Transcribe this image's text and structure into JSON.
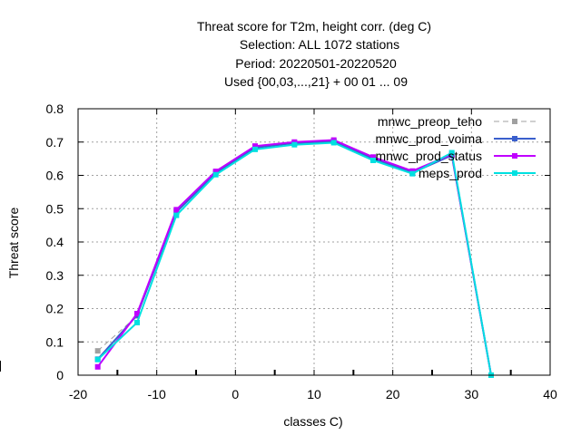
{
  "chart_data": {
    "type": "line",
    "title": [
      "Threat score  for T2m, height corr. (deg C)",
      "Selection: ALL    1072 stations",
      "Period: 20220501-20220520",
      "Used {00,03,...,21} + 00 01 ... 09"
    ],
    "xlabel": "classes C)",
    "ylabel": "Threat score",
    "xlim": [
      -20,
      40
    ],
    "ylim": [
      0,
      0.8
    ],
    "xticks": [
      -20,
      -10,
      0,
      10,
      20,
      30,
      40
    ],
    "yticks": [
      0,
      0.1,
      0.2,
      0.3,
      0.4,
      0.5,
      0.6,
      0.7,
      0.8
    ],
    "xtick_labels": [
      "-20",
      "-10",
      "0",
      "10",
      "20",
      "30",
      "40"
    ],
    "ytick_labels": [
      "0",
      "0.1",
      "0.2",
      "0.3",
      "0.4",
      "0.5",
      "0.6",
      "0.7",
      "0.8"
    ],
    "grid": true,
    "legend_position": "top-right",
    "series": [
      {
        "name": "mnwc_preop_teho",
        "color": "#a0a0a0",
        "dashed": true,
        "x": [
          -17.5,
          -12.5,
          -7.5,
          -2.5,
          2.5,
          7.5,
          12.5,
          17.5,
          22.5,
          27.5,
          32.5
        ],
        "y": [
          0.073,
          0.178,
          0.49,
          0.61,
          0.685,
          0.697,
          0.703,
          0.652,
          0.61,
          0.66,
          0.0
        ]
      },
      {
        "name": "mnwc_prod_voima",
        "color": "#3a5fcd",
        "dashed": false,
        "x": [
          -17.5,
          -12.5,
          -7.5,
          -2.5,
          2.5,
          7.5,
          12.5,
          17.5,
          22.5,
          27.5,
          32.5
        ],
        "y": [
          0.048,
          0.18,
          0.49,
          0.607,
          0.683,
          0.697,
          0.702,
          0.65,
          0.608,
          0.66,
          0.0
        ]
      },
      {
        "name": "mnwc_prod_status",
        "color": "#c000ff",
        "dashed": false,
        "x": [
          -17.5,
          -12.5,
          -7.5,
          -2.5,
          2.5,
          7.5,
          12.5,
          17.5,
          22.5,
          27.5,
          32.5
        ],
        "y": [
          0.025,
          0.185,
          0.497,
          0.612,
          0.688,
          0.7,
          0.706,
          0.655,
          0.613,
          0.663,
          0.0
        ]
      },
      {
        "name": "meps_prod",
        "color": "#00e0e0",
        "dashed": false,
        "x": [
          -17.5,
          -12.5,
          -7.5,
          -2.5,
          2.5,
          7.5,
          12.5,
          17.5,
          22.5,
          27.5,
          32.5
        ],
        "y": [
          0.047,
          0.158,
          0.48,
          0.602,
          0.678,
          0.692,
          0.698,
          0.645,
          0.605,
          0.668,
          0.0
        ]
      }
    ]
  }
}
